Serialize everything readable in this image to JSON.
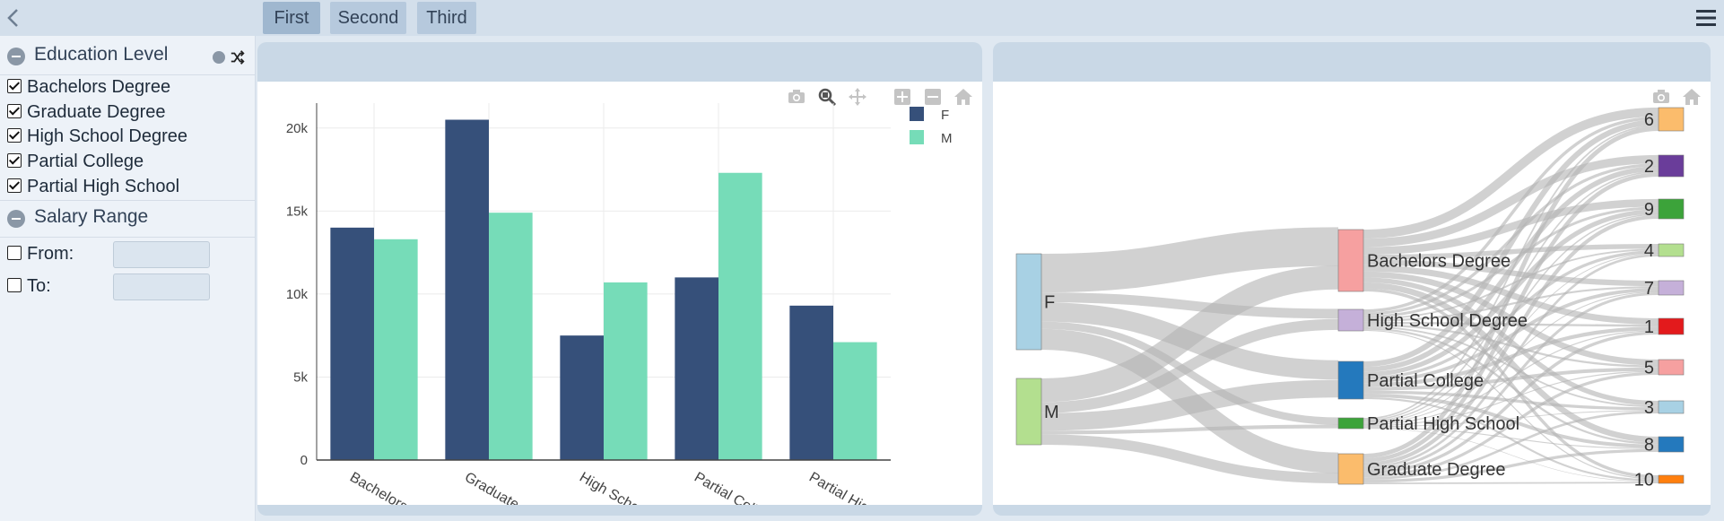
{
  "topbar": {
    "tabs": [
      {
        "label": "First",
        "active": true
      },
      {
        "label": "Second",
        "active": false
      },
      {
        "label": "Third",
        "active": false
      }
    ]
  },
  "sidebar": {
    "education": {
      "title": "Education Level",
      "items": [
        {
          "label": "Bachelors Degree",
          "checked": true
        },
        {
          "label": "Graduate Degree",
          "checked": true
        },
        {
          "label": "High School Degree",
          "checked": true
        },
        {
          "label": "Partial College",
          "checked": true
        },
        {
          "label": "Partial High School",
          "checked": true
        }
      ]
    },
    "salary": {
      "title": "Salary Range",
      "from_label": "From:",
      "to_label": "To:",
      "from_value": "",
      "to_value": ""
    }
  },
  "chart_data": [
    {
      "type": "bar",
      "categories": [
        "Bachelors Degree",
        "Graduate Degree",
        "High School Degree",
        "Partial College",
        "Partial High School"
      ],
      "tick_labels_visible": [
        "Bachelors ...",
        "Graduate ...",
        "High Scho...",
        "Partial Coll...",
        "Partial Hig..."
      ],
      "series": [
        {
          "name": "F",
          "color": "#36507a",
          "values": [
            14000,
            20500,
            7500,
            11000,
            9300
          ]
        },
        {
          "name": "M",
          "color": "#76dcb8",
          "values": [
            13300,
            14900,
            10700,
            17300,
            7100
          ]
        }
      ],
      "ylim": [
        0,
        21500
      ],
      "yticks": [
        0,
        5000,
        10000,
        15000,
        20000
      ],
      "ytick_labels": [
        "0",
        "5k",
        "10k",
        "15k",
        "20k"
      ],
      "grid": true,
      "legend": "top-right"
    },
    {
      "type": "sankey",
      "sources": [
        {
          "label": "F",
          "color": "#a8d1e4"
        },
        {
          "label": "M",
          "color": "#b3df8f"
        }
      ],
      "education_nodes": [
        {
          "label": "Bachelors Degree",
          "color": "#f6a0a0"
        },
        {
          "label": "High School Degree",
          "color": "#c5b0d9"
        },
        {
          "label": "Partial College",
          "color": "#2479bd"
        },
        {
          "label": "Partial High School",
          "color": "#3ca33a"
        },
        {
          "label": "Graduate Degree",
          "color": "#fbbc6c"
        }
      ],
      "targets": [
        {
          "label": "6",
          "color": "#fbbc6c"
        },
        {
          "label": "2",
          "color": "#6a3d9a"
        },
        {
          "label": "9",
          "color": "#3ca33a"
        },
        {
          "label": "4",
          "color": "#b3df8f"
        },
        {
          "label": "7",
          "color": "#c5b0d9"
        },
        {
          "label": "1",
          "color": "#e31a1c"
        },
        {
          "label": "5",
          "color": "#f6a0a0"
        },
        {
          "label": "3",
          "color": "#a8d1e4"
        },
        {
          "label": "8",
          "color": "#2479bd"
        },
        {
          "label": "10",
          "color": "#ff7f0e"
        }
      ]
    }
  ]
}
